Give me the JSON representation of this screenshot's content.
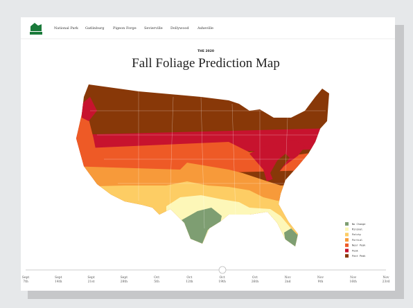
{
  "nav": {
    "links": [
      "National Park",
      "Gatlinburg",
      "Pigeon Forge",
      "Sevierville",
      "Dollywood",
      "Asheville"
    ]
  },
  "header": {
    "eyebrow": "THE 2020",
    "title": "Fall Foliage Prediction Map"
  },
  "legend": {
    "items": [
      {
        "label": "No Change",
        "color": "#7e9e72"
      },
      {
        "label": "Minimal",
        "color": "#fdf7b8"
      },
      {
        "label": "Patchy",
        "color": "#fdcd64"
      },
      {
        "label": "Partial",
        "color": "#f79a3a"
      },
      {
        "label": "Near Peak",
        "color": "#ee5a26"
      },
      {
        "label": "Peak",
        "color": "#c7132e"
      },
      {
        "label": "Past Peak",
        "color": "#883808"
      }
    ]
  },
  "timeline": {
    "dates": [
      {
        "month": "Sept",
        "day": "7th"
      },
      {
        "month": "Sept",
        "day": "14th"
      },
      {
        "month": "Sept",
        "day": "21st"
      },
      {
        "month": "Sept",
        "day": "28th"
      },
      {
        "month": "Oct",
        "day": "5th"
      },
      {
        "month": "Oct",
        "day": "12th"
      },
      {
        "month": "Oct",
        "day": "19th"
      },
      {
        "month": "Oct",
        "day": "26th"
      },
      {
        "month": "Nov",
        "day": "2nd"
      },
      {
        "month": "Nov",
        "day": "9th"
      },
      {
        "month": "Nov",
        "day": "16th"
      },
      {
        "month": "Nov",
        "day": "23rd"
      }
    ]
  }
}
